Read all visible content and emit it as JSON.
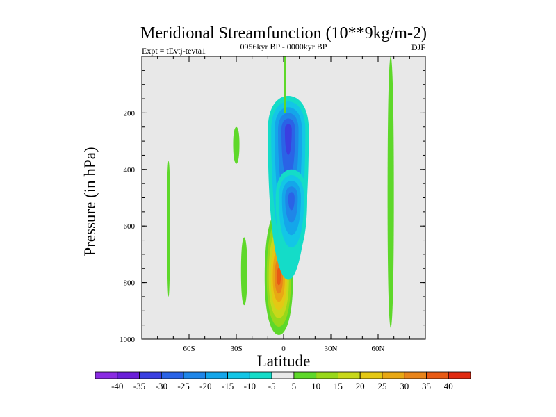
{
  "chart_data": {
    "type": "contour",
    "title": "Meridional Streamfunction (10**9kg/m-2)",
    "subtitle": "0956kyr BP - 0000kyr BP",
    "left_label": "Expt = tEvtj-tevta1",
    "right_label": "DJF",
    "xlabel": "Latitude",
    "ylabel": "Pressure (in hPa)",
    "xlim": [
      -90,
      90
    ],
    "ylim": [
      1000,
      0
    ],
    "x_ticks": [
      {
        "value": -60,
        "label": "60S"
      },
      {
        "value": -30,
        "label": "30S"
      },
      {
        "value": 0,
        "label": "0"
      },
      {
        "value": 30,
        "label": "30N"
      },
      {
        "value": 60,
        "label": "60N"
      }
    ],
    "y_ticks": [
      {
        "value": 200,
        "label": "200"
      },
      {
        "value": 400,
        "label": "400"
      },
      {
        "value": 600,
        "label": "600"
      },
      {
        "value": 800,
        "label": "800"
      },
      {
        "value": 1000,
        "label": "1000"
      }
    ],
    "colorbar": {
      "labels": [
        "-40",
        "-35",
        "-30",
        "-25",
        "-20",
        "-15",
        "-10",
        "-5",
        "5",
        "10",
        "15",
        "20",
        "25",
        "30",
        "35",
        "40"
      ],
      "colors": [
        "#8a2be2",
        "#6a1fd8",
        "#3a3fe0",
        "#2a63e6",
        "#1f86e8",
        "#14a6ea",
        "#13c6e6",
        "#14dcc8",
        "#e8e8e8",
        "#5ed82a",
        "#98d81a",
        "#c8d81a",
        "#e4c814",
        "#e8a814",
        "#e8841a",
        "#e85a14",
        "#e02a10"
      ]
    },
    "background_color": "#e8e8e8",
    "features": [
      {
        "type": "positive",
        "center_lat": -3,
        "center_p": 780,
        "peak": 35,
        "lat_halfwidth": 9,
        "p_top": 545,
        "p_bottom": 985
      },
      {
        "type": "negative",
        "center_lat": 3,
        "center_p": 260,
        "peak": -30,
        "lat_halfwidth": 13,
        "p_top": 140,
        "p_bottom": 790
      },
      {
        "type": "negative",
        "center_lat": 5,
        "center_p": 500,
        "peak": -25,
        "lat_halfwidth": 10,
        "p_top": 400,
        "p_bottom": 720
      },
      {
        "type": "positive",
        "center_lat": 68,
        "center_p": 500,
        "peak": 7,
        "lat_halfwidth": 2,
        "p_top": 0,
        "p_bottom": 960
      },
      {
        "type": "positive",
        "center_lat": -25,
        "center_p": 760,
        "peak": 7,
        "lat_halfwidth": 2,
        "p_top": 640,
        "p_bottom": 880
      },
      {
        "type": "positive",
        "center_lat": -73,
        "center_p": 560,
        "peak": 6,
        "lat_halfwidth": 1,
        "p_top": 370,
        "p_bottom": 850
      },
      {
        "type": "positive",
        "center_lat": -30,
        "center_p": 310,
        "peak": 6,
        "lat_halfwidth": 2,
        "p_top": 250,
        "p_bottom": 380
      }
    ]
  }
}
